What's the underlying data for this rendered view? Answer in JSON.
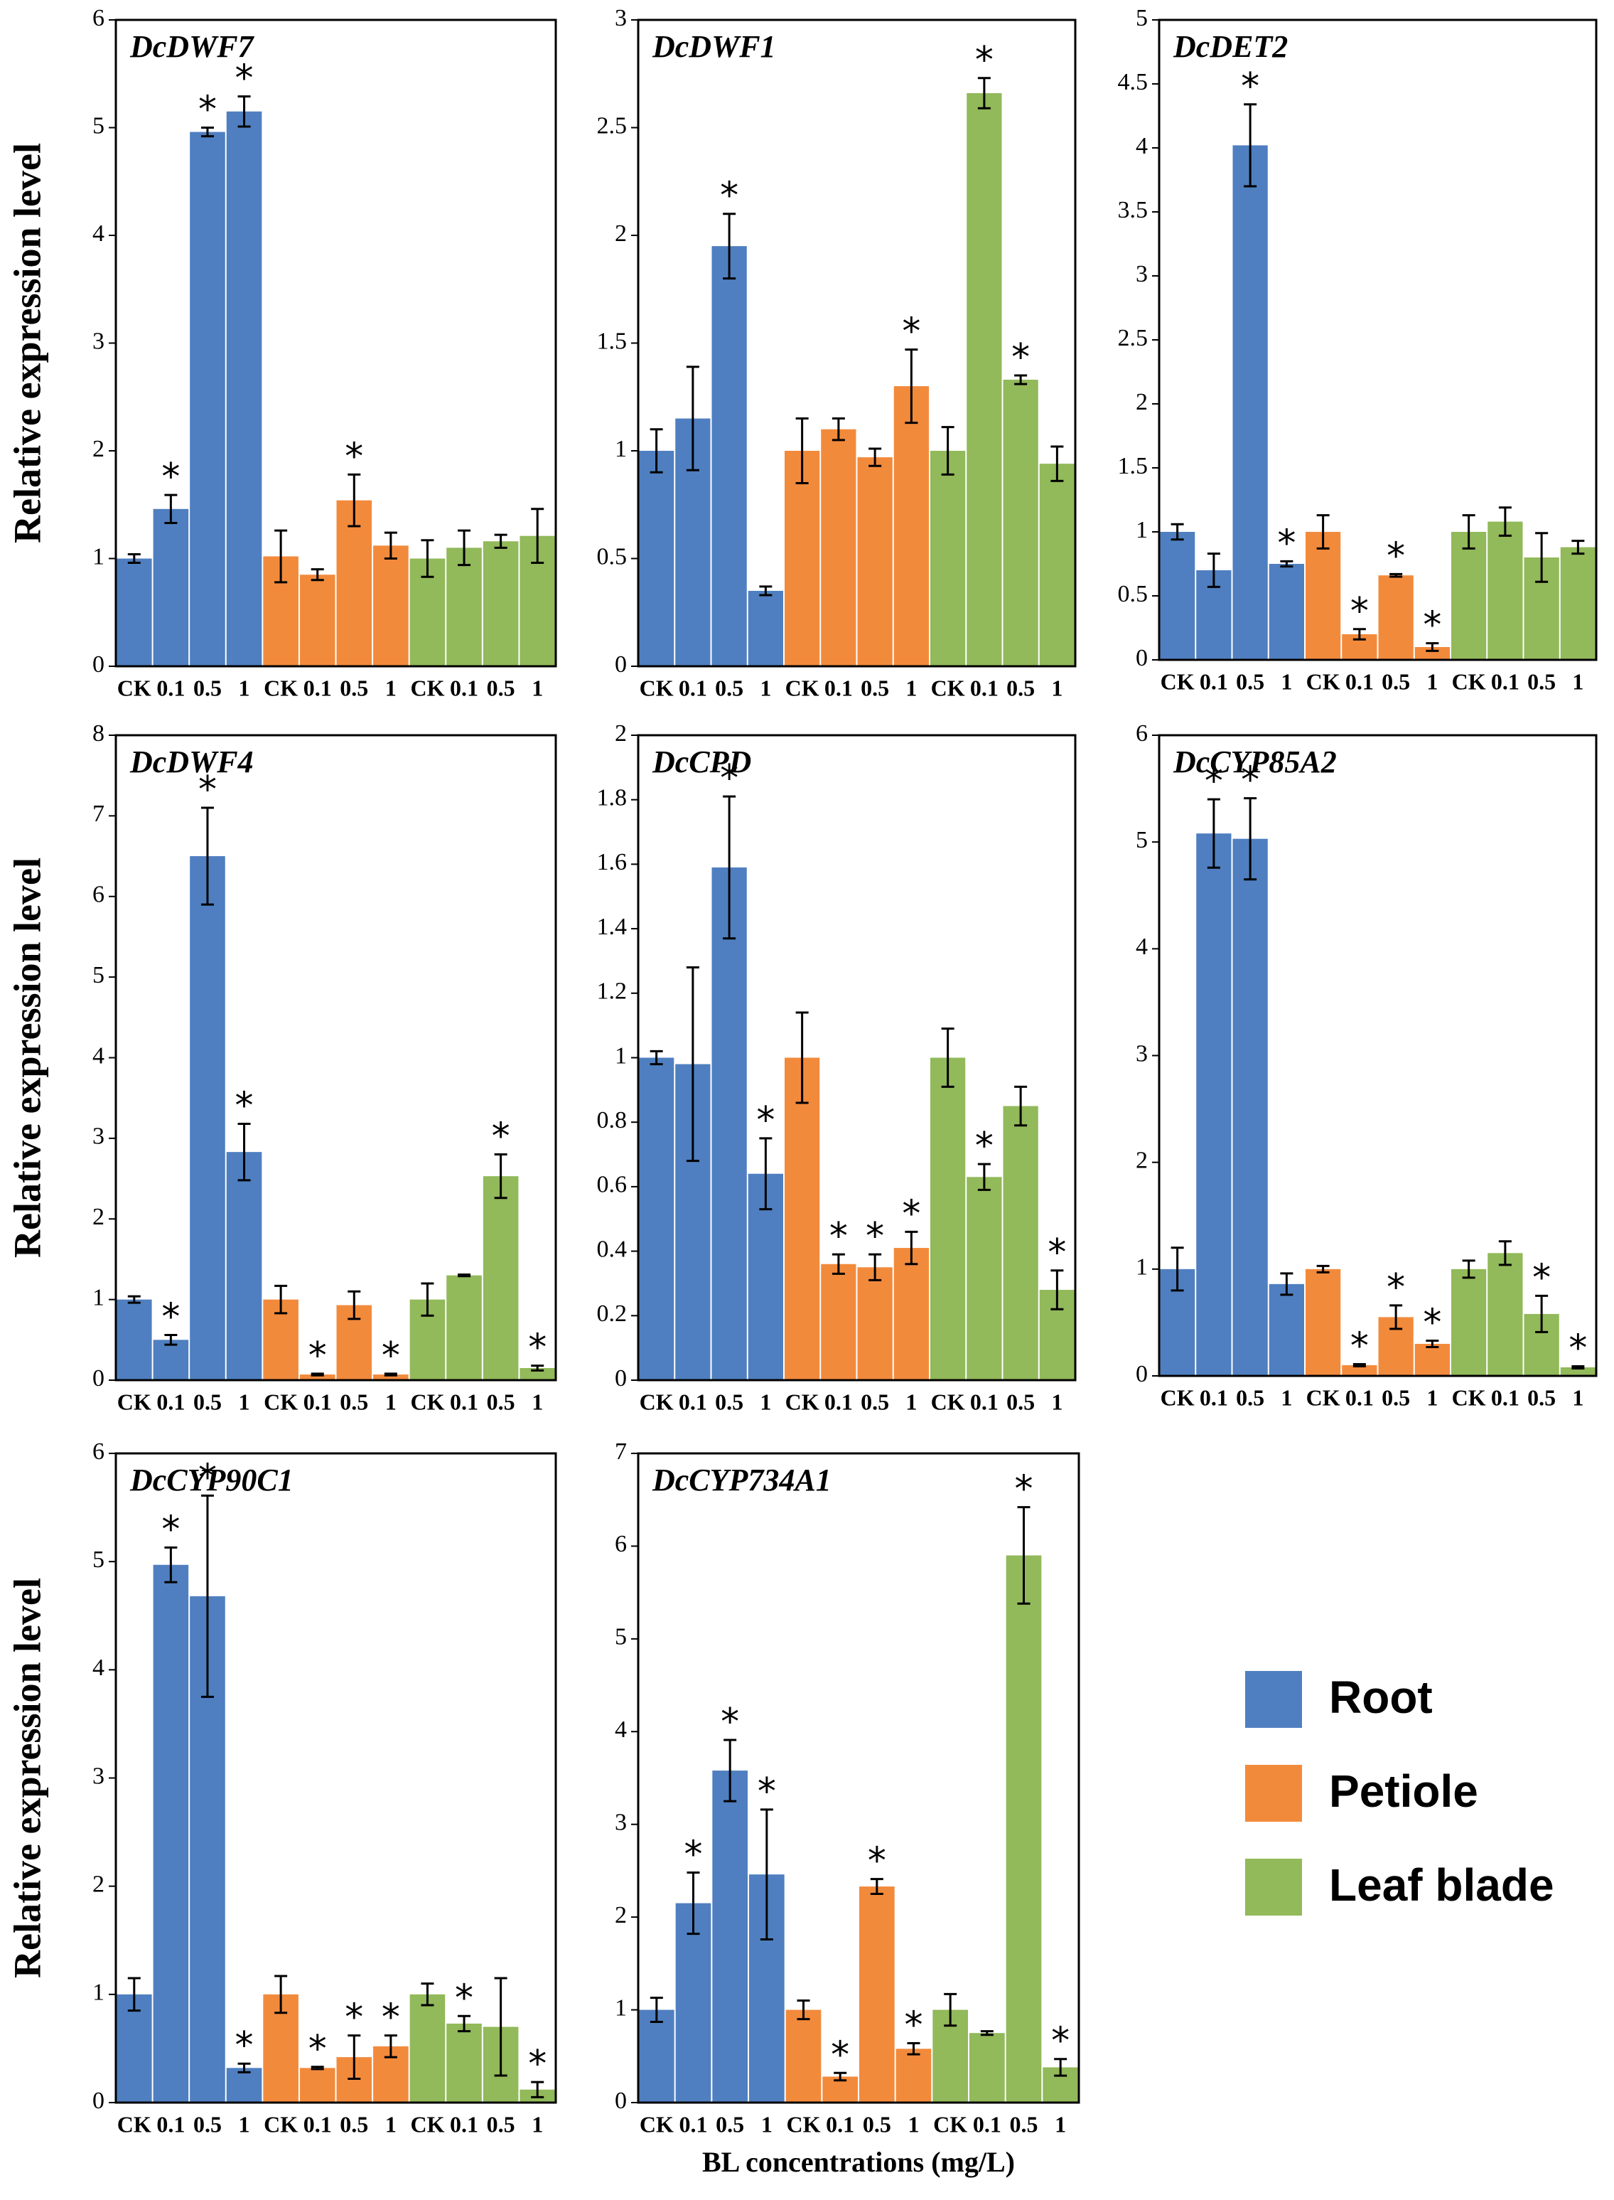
{
  "chart_data": [
    {
      "type": "bar",
      "title": "DcDWF7",
      "ylabel": "Relative expression level",
      "ylim": [
        0,
        6
      ],
      "yticks": [
        0,
        1,
        2,
        3,
        4,
        5,
        6
      ],
      "categories": [
        "CK",
        "0.1",
        "0.5",
        "1"
      ],
      "series": [
        {
          "name": "Root",
          "color": "#4f7fc0",
          "values": [
            1.0,
            1.46,
            4.96,
            5.15
          ],
          "errors": [
            0.04,
            0.13,
            0.04,
            0.14
          ],
          "marks": [
            null,
            "*",
            "*",
            "*"
          ]
        },
        {
          "name": "Petiole",
          "color": "#f28a3c",
          "values": [
            1.02,
            0.85,
            1.54,
            1.12
          ],
          "errors": [
            0.24,
            0.05,
            0.24,
            0.12
          ],
          "marks": [
            null,
            null,
            "*",
            null
          ]
        },
        {
          "name": "Leaf blade",
          "color": "#92b95a",
          "values": [
            1.0,
            1.1,
            1.16,
            1.21
          ],
          "errors": [
            0.17,
            0.16,
            0.06,
            0.25
          ],
          "marks": [
            null,
            null,
            null,
            null
          ]
        }
      ]
    },
    {
      "type": "bar",
      "title": "DcDWF1",
      "ylim": [
        0,
        3
      ],
      "yticks": [
        0,
        0.5,
        1,
        1.5,
        2,
        2.5,
        3
      ],
      "categories": [
        "CK",
        "0.1",
        "0.5",
        "1"
      ],
      "series": [
        {
          "name": "Root",
          "color": "#4f7fc0",
          "values": [
            1.0,
            1.15,
            1.95,
            0.35
          ],
          "errors": [
            0.1,
            0.24,
            0.15,
            0.02
          ],
          "marks": [
            null,
            null,
            "*",
            null
          ]
        },
        {
          "name": "Petiole",
          "color": "#f28a3c",
          "values": [
            1.0,
            1.1,
            0.97,
            1.3
          ],
          "errors": [
            0.15,
            0.05,
            0.04,
            0.17
          ],
          "marks": [
            null,
            null,
            null,
            "*"
          ]
        },
        {
          "name": "Leaf blade",
          "color": "#92b95a",
          "values": [
            1.0,
            2.66,
            1.33,
            0.94
          ],
          "errors": [
            0.11,
            0.07,
            0.02,
            0.08
          ],
          "marks": [
            null,
            "*",
            "*",
            null
          ]
        }
      ]
    },
    {
      "type": "bar",
      "title": "DcDET2",
      "ylim": [
        0,
        5
      ],
      "yticks": [
        0,
        0.5,
        1,
        1.5,
        2,
        2.5,
        3,
        3.5,
        4,
        4.5,
        5
      ],
      "categories": [
        "CK",
        "0.1",
        "0.5",
        "1"
      ],
      "series": [
        {
          "name": "Root",
          "color": "#4f7fc0",
          "values": [
            1.0,
            0.7,
            4.02,
            0.75
          ],
          "errors": [
            0.06,
            0.13,
            0.32,
            0.02
          ],
          "marks": [
            null,
            null,
            "*",
            "*"
          ]
        },
        {
          "name": "Petiole",
          "color": "#f28a3c",
          "values": [
            1.0,
            0.2,
            0.66,
            0.1
          ],
          "errors": [
            0.13,
            0.04,
            0.01,
            0.03
          ],
          "marks": [
            null,
            "*",
            "*",
            "*"
          ]
        },
        {
          "name": "Leaf blade",
          "color": "#92b95a",
          "values": [
            1.0,
            1.08,
            0.8,
            0.88
          ],
          "errors": [
            0.13,
            0.11,
            0.19,
            0.05
          ],
          "marks": [
            null,
            null,
            null,
            null
          ]
        }
      ]
    },
    {
      "type": "bar",
      "title": "DcDWF4",
      "ylabel": "Relative expression level",
      "ylim": [
        0,
        8
      ],
      "yticks": [
        0,
        1,
        2,
        3,
        4,
        5,
        6,
        7,
        8
      ],
      "categories": [
        "CK",
        "0.1",
        "0.5",
        "1"
      ],
      "series": [
        {
          "name": "Root",
          "color": "#4f7fc0",
          "values": [
            1.0,
            0.5,
            6.5,
            2.83
          ],
          "errors": [
            0.04,
            0.06,
            0.6,
            0.35
          ],
          "marks": [
            null,
            "*",
            "*",
            "*"
          ]
        },
        {
          "name": "Petiole",
          "color": "#f28a3c",
          "values": [
            1.0,
            0.07,
            0.93,
            0.07
          ],
          "errors": [
            0.17,
            0.01,
            0.17,
            0.01
          ],
          "marks": [
            null,
            "*",
            null,
            "*"
          ]
        },
        {
          "name": "Leaf blade",
          "color": "#92b95a",
          "values": [
            1.0,
            1.3,
            2.53,
            0.15
          ],
          "errors": [
            0.2,
            0.01,
            0.27,
            0.03
          ],
          "marks": [
            null,
            null,
            "*",
            "*"
          ]
        }
      ]
    },
    {
      "type": "bar",
      "title": "DcCPD",
      "ylim": [
        0,
        2
      ],
      "yticks": [
        0,
        0.2,
        0.4,
        0.6,
        0.8,
        1,
        1.2,
        1.4,
        1.6,
        1.8,
        2
      ],
      "categories": [
        "CK",
        "0.1",
        "0.5",
        "1"
      ],
      "series": [
        {
          "name": "Root",
          "color": "#4f7fc0",
          "values": [
            1.0,
            0.98,
            1.59,
            0.64
          ],
          "errors": [
            0.02,
            0.3,
            0.22,
            0.11
          ],
          "marks": [
            null,
            null,
            "*",
            "*"
          ]
        },
        {
          "name": "Petiole",
          "color": "#f28a3c",
          "values": [
            1.0,
            0.36,
            0.35,
            0.41
          ],
          "errors": [
            0.14,
            0.03,
            0.04,
            0.05
          ],
          "marks": [
            null,
            "*",
            "*",
            "*"
          ]
        },
        {
          "name": "Leaf blade",
          "color": "#92b95a",
          "values": [
            1.0,
            0.63,
            0.85,
            0.28
          ],
          "errors": [
            0.09,
            0.04,
            0.06,
            0.06
          ],
          "marks": [
            null,
            "*",
            null,
            "*"
          ]
        }
      ]
    },
    {
      "type": "bar",
      "title": "DcCYP85A2",
      "ylim": [
        0,
        6
      ],
      "yticks": [
        0,
        1,
        2,
        3,
        4,
        5,
        6
      ],
      "categories": [
        "CK",
        "0.1",
        "0.5",
        "1"
      ],
      "series": [
        {
          "name": "Root",
          "color": "#4f7fc0",
          "values": [
            1.0,
            5.08,
            5.03,
            0.86
          ],
          "errors": [
            0.2,
            0.32,
            0.38,
            0.1
          ],
          "marks": [
            null,
            "*",
            "*",
            null
          ]
        },
        {
          "name": "Petiole",
          "color": "#f28a3c",
          "values": [
            1.0,
            0.1,
            0.55,
            0.3
          ],
          "errors": [
            0.03,
            0.01,
            0.11,
            0.03
          ],
          "marks": [
            null,
            "*",
            "*",
            "*"
          ]
        },
        {
          "name": "Leaf blade",
          "color": "#92b95a",
          "values": [
            1.0,
            1.15,
            0.58,
            0.08
          ],
          "errors": [
            0.08,
            0.11,
            0.17,
            0.01
          ],
          "marks": [
            null,
            null,
            "*",
            "*"
          ]
        }
      ]
    },
    {
      "type": "bar",
      "title": "DcCYP90C1",
      "ylabel": "Relative expression level",
      "ylim": [
        0,
        6
      ],
      "yticks": [
        0,
        1,
        2,
        3,
        4,
        5,
        6
      ],
      "categories": [
        "CK",
        "0.1",
        "0.5",
        "1"
      ],
      "series": [
        {
          "name": "Root",
          "color": "#4f7fc0",
          "values": [
            1.0,
            4.97,
            4.68,
            0.32
          ],
          "errors": [
            0.15,
            0.16,
            0.93,
            0.04
          ],
          "marks": [
            null,
            "*",
            "*",
            "*"
          ]
        },
        {
          "name": "Petiole",
          "color": "#f28a3c",
          "values": [
            1.0,
            0.32,
            0.42,
            0.52
          ],
          "errors": [
            0.17,
            0.01,
            0.2,
            0.1
          ],
          "marks": [
            null,
            "*",
            "*",
            "*"
          ]
        },
        {
          "name": "Leaf blade",
          "color": "#92b95a",
          "values": [
            1.0,
            0.73,
            0.7,
            0.12
          ],
          "errors": [
            0.1,
            0.07,
            0.45,
            0.07
          ],
          "marks": [
            null,
            "*",
            null,
            "*"
          ]
        }
      ]
    },
    {
      "type": "bar",
      "title": "DcCYP734A1",
      "xlabel": "BL concentrations (mg/L)",
      "ylim": [
        0,
        7
      ],
      "yticks": [
        0,
        1,
        2,
        3,
        4,
        5,
        6,
        7
      ],
      "categories": [
        "CK",
        "0.1",
        "0.5",
        "1"
      ],
      "series": [
        {
          "name": "Root",
          "color": "#4f7fc0",
          "values": [
            1.0,
            2.15,
            3.58,
            2.46
          ],
          "errors": [
            0.13,
            0.33,
            0.33,
            0.7
          ],
          "marks": [
            null,
            "*",
            "*",
            "*"
          ]
        },
        {
          "name": "Petiole",
          "color": "#f28a3c",
          "values": [
            1.0,
            0.28,
            2.33,
            0.58
          ],
          "errors": [
            0.1,
            0.04,
            0.08,
            0.06
          ],
          "marks": [
            null,
            "*",
            "*",
            "*"
          ]
        },
        {
          "name": "Leaf blade",
          "color": "#92b95a",
          "values": [
            1.0,
            0.75,
            5.9,
            0.38
          ],
          "errors": [
            0.17,
            0.02,
            0.52,
            0.09
          ],
          "marks": [
            null,
            null,
            "*",
            "*"
          ]
        }
      ]
    }
  ]
}
